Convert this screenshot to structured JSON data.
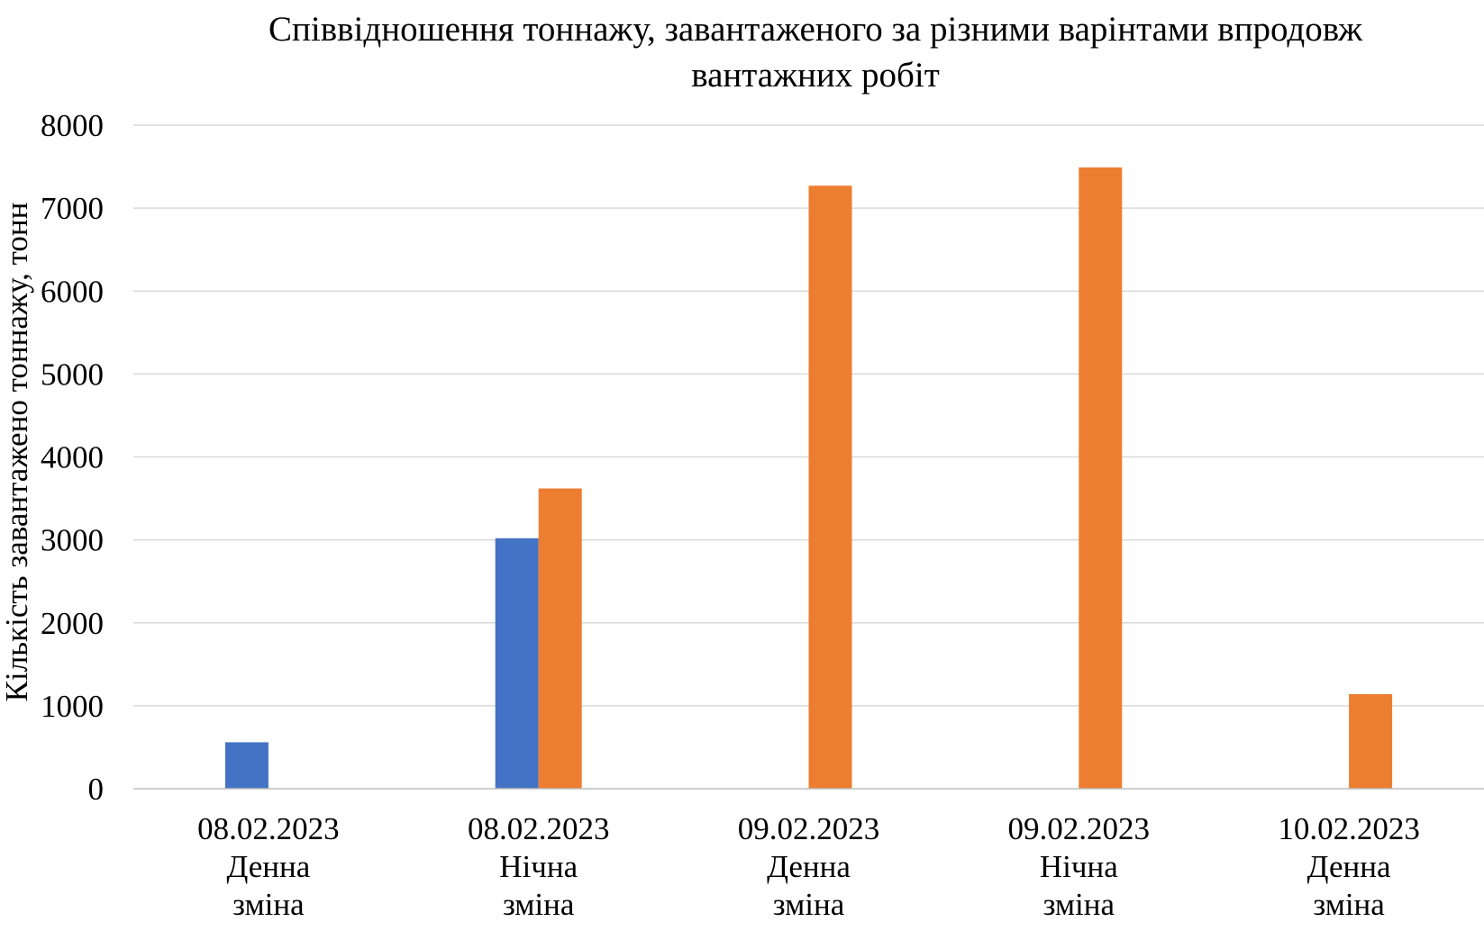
{
  "chart_data": {
    "type": "bar",
    "title": "Співвідношення тоннажу, завантаженого за різними варінтами впродовж вантажних робіт",
    "title_lines": [
      "Співвідношення тоннажу, завантаженого за різними варінтами впродовж",
      "вантажних робіт"
    ],
    "xlabel": "",
    "ylabel": "Кількість завантажено тоннажу, тонн",
    "ylim": [
      0,
      8000
    ],
    "yticks": [
      0,
      1000,
      2000,
      3000,
      4000,
      5000,
      6000,
      7000,
      8000
    ],
    "grid": true,
    "legend": "none",
    "categories": [
      [
        "08.02.2023",
        "Денна",
        "зміна"
      ],
      [
        "08.02.2023",
        "Нічна",
        "зміна"
      ],
      [
        "09.02.2023",
        "Денна",
        "зміна"
      ],
      [
        "09.02.2023",
        "Нічна",
        "зміна"
      ],
      [
        "10.02.2023",
        "Денна",
        "зміна"
      ]
    ],
    "series": [
      {
        "color": "#4472C4",
        "values": [
          560,
          3020,
          0,
          0,
          0
        ]
      },
      {
        "color": "#ED7D31",
        "values": [
          0,
          3620,
          7270,
          7490,
          1140
        ]
      }
    ],
    "colors": {
      "gridline": "#D9D9D9",
      "axis": "#BFBFBF"
    }
  }
}
